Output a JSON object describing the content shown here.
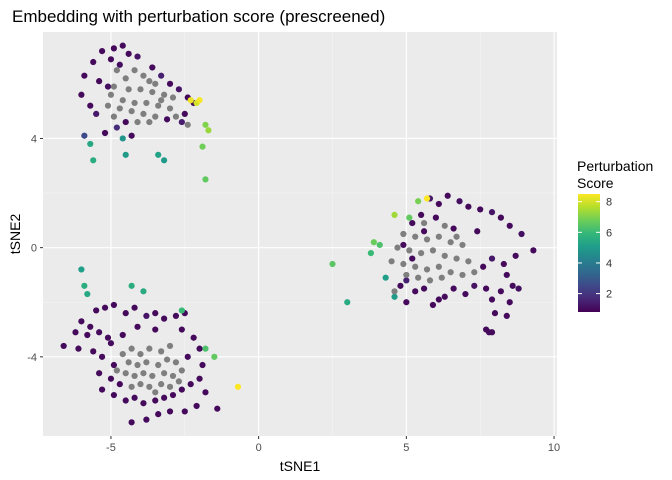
{
  "chart_data": {
    "type": "scatter",
    "title": "Embedding with perturbation score (prescreened)",
    "xlabel": "tSNE1",
    "ylabel": "tSNE2",
    "xlim": [
      -7.3,
      10.1
    ],
    "ylim": [
      -6.9,
      7.9
    ],
    "x_ticks": [
      -5,
      0,
      5,
      10
    ],
    "y_ticks": [
      -4,
      0,
      4
    ],
    "x_tick_labels": [
      "-5",
      "0",
      "5",
      "10"
    ],
    "y_tick_labels": [
      "-4",
      "0",
      "4"
    ],
    "grid": true,
    "legend": {
      "title_lines": [
        "Perturbation",
        "Score"
      ],
      "placement": "right",
      "min": 0.8,
      "max": 8.5,
      "ticks": [
        2,
        4,
        6,
        8
      ],
      "tick_labels": [
        "2",
        "4",
        "6",
        "8"
      ]
    },
    "na_color": "#7f7f7f",
    "colormap": [
      "#440154",
      "#482878",
      "#3e4989",
      "#31688e",
      "#26828e",
      "#1f9e89",
      "#35b779",
      "#6ece58",
      "#b5de2b",
      "#fde725"
    ],
    "points": [
      {
        "x": -5.3,
        "y": 7.2,
        "score": 1.0
      },
      {
        "x": -4.9,
        "y": 7.3,
        "score": 1.0
      },
      {
        "x": -4.6,
        "y": 7.4,
        "score": 1.0
      },
      {
        "x": -4.4,
        "y": 7.1,
        "score": 1.0
      },
      {
        "x": -4.1,
        "y": 7.0,
        "score": 1.2
      },
      {
        "x": -5.6,
        "y": 6.8,
        "score": 1.0
      },
      {
        "x": -5.0,
        "y": 6.9,
        "score": 1.0
      },
      {
        "x": -4.7,
        "y": 6.7,
        "score": 1.1
      },
      {
        "x": -3.6,
        "y": 6.6,
        "score": 1.0
      },
      {
        "x": -3.3,
        "y": 6.3,
        "score": 1.5
      },
      {
        "x": -5.9,
        "y": 6.3,
        "score": 1.0
      },
      {
        "x": -5.4,
        "y": 6.1,
        "score": 1.0
      },
      {
        "x": -5.1,
        "y": 5.9,
        "score": 1.1
      },
      {
        "x": -6.0,
        "y": 5.6,
        "score": 1.0
      },
      {
        "x": -5.7,
        "y": 5.2,
        "score": 1.0
      },
      {
        "x": -5.5,
        "y": 4.9,
        "score": 1.3
      },
      {
        "x": -3.0,
        "y": 6.0,
        "score": 1.0
      },
      {
        "x": -2.7,
        "y": 5.8,
        "score": 1.2
      },
      {
        "x": -2.4,
        "y": 5.5,
        "score": 1.0
      },
      {
        "x": -2.2,
        "y": 5.3,
        "score": 1.0
      },
      {
        "x": -2.5,
        "y": 4.9,
        "score": 1.0
      },
      {
        "x": -2.6,
        "y": 4.6,
        "score": 1.4
      },
      {
        "x": -3.1,
        "y": 4.7,
        "score": 1.0
      },
      {
        "x": -4.5,
        "y": 4.6,
        "score": 1.0
      },
      {
        "x": -4.8,
        "y": 4.4,
        "score": 1.8
      },
      {
        "x": -5.2,
        "y": 4.2,
        "score": 1.0
      },
      {
        "x": -4.3,
        "y": 4.1,
        "score": 1.0
      },
      {
        "x": -5.9,
        "y": 4.1,
        "score": 2.5
      },
      {
        "x": -4.6,
        "y": 4.0,
        "score": 4.8
      },
      {
        "x": -5.7,
        "y": 3.8,
        "score": 5.4
      },
      {
        "x": -5.6,
        "y": 3.2,
        "score": 5.6
      },
      {
        "x": -4.5,
        "y": 3.4,
        "score": 5.0
      },
      {
        "x": -3.4,
        "y": 3.4,
        "score": 5.2
      },
      {
        "x": -3.2,
        "y": 3.2,
        "score": 5.0
      },
      {
        "x": -2.3,
        "y": 5.4,
        "score": 8.3
      },
      {
        "x": -2.1,
        "y": 5.3,
        "score": 8.0
      },
      {
        "x": -2.0,
        "y": 5.4,
        "score": 8.4
      },
      {
        "x": -1.8,
        "y": 4.5,
        "score": 7.0
      },
      {
        "x": -1.7,
        "y": 4.3,
        "score": 7.3
      },
      {
        "x": -1.9,
        "y": 3.7,
        "score": 6.8
      },
      {
        "x": -1.8,
        "y": 2.5,
        "score": 6.6
      },
      {
        "x": -4.8,
        "y": 6.5,
        "score": null
      },
      {
        "x": -4.5,
        "y": 6.2,
        "score": null
      },
      {
        "x": -4.2,
        "y": 6.5,
        "score": null
      },
      {
        "x": -3.9,
        "y": 6.3,
        "score": null
      },
      {
        "x": -3.7,
        "y": 6.1,
        "score": null
      },
      {
        "x": -3.5,
        "y": 6.0,
        "score": null
      },
      {
        "x": -4.9,
        "y": 5.9,
        "score": null
      },
      {
        "x": -4.4,
        "y": 5.8,
        "score": null
      },
      {
        "x": -4.0,
        "y": 5.8,
        "score": null
      },
      {
        "x": -3.6,
        "y": 5.7,
        "score": null
      },
      {
        "x": -3.2,
        "y": 5.6,
        "score": null
      },
      {
        "x": -2.9,
        "y": 5.5,
        "score": null
      },
      {
        "x": -5.0,
        "y": 5.6,
        "score": null
      },
      {
        "x": -4.6,
        "y": 5.4,
        "score": null
      },
      {
        "x": -4.2,
        "y": 5.3,
        "score": null
      },
      {
        "x": -3.8,
        "y": 5.3,
        "score": null
      },
      {
        "x": -3.4,
        "y": 5.2,
        "score": null
      },
      {
        "x": -3.0,
        "y": 5.1,
        "score": null
      },
      {
        "x": -5.1,
        "y": 5.2,
        "score": null
      },
      {
        "x": -4.7,
        "y": 5.1,
        "score": null
      },
      {
        "x": -4.3,
        "y": 5.0,
        "score": null
      },
      {
        "x": -3.9,
        "y": 4.9,
        "score": null
      },
      {
        "x": -3.5,
        "y": 4.8,
        "score": null
      },
      {
        "x": -3.7,
        "y": 4.6,
        "score": null
      },
      {
        "x": -4.1,
        "y": 4.6,
        "score": null
      },
      {
        "x": -2.8,
        "y": 4.8,
        "score": null
      },
      {
        "x": -2.4,
        "y": 4.5,
        "score": null
      },
      {
        "x": -3.3,
        "y": 5.4,
        "score": null
      },
      {
        "x": -4.9,
        "y": 4.8,
        "score": null
      },
      {
        "x": 5.8,
        "y": 1.8,
        "score": 1.3
      },
      {
        "x": 6.1,
        "y": 1.6,
        "score": 1.0
      },
      {
        "x": 6.4,
        "y": 1.9,
        "score": 1.0
      },
      {
        "x": 6.8,
        "y": 1.7,
        "score": 1.1
      },
      {
        "x": 7.1,
        "y": 1.5,
        "score": 1.0
      },
      {
        "x": 7.5,
        "y": 1.4,
        "score": 1.0
      },
      {
        "x": 7.9,
        "y": 1.3,
        "score": 1.2
      },
      {
        "x": 8.2,
        "y": 1.1,
        "score": 1.0
      },
      {
        "x": 5.5,
        "y": 1.2,
        "score": 1.0
      },
      {
        "x": 5.2,
        "y": 0.9,
        "score": 1.0
      },
      {
        "x": 6.0,
        "y": 1.1,
        "score": 1.0
      },
      {
        "x": 8.5,
        "y": 0.8,
        "score": 1.0
      },
      {
        "x": 8.9,
        "y": 0.5,
        "score": 1.1
      },
      {
        "x": 9.3,
        "y": -0.1,
        "score": 1.0
      },
      {
        "x": 8.7,
        "y": -0.3,
        "score": 1.0
      },
      {
        "x": 8.3,
        "y": -0.6,
        "score": 1.0
      },
      {
        "x": 7.9,
        "y": -0.4,
        "score": 1.3
      },
      {
        "x": 7.6,
        "y": -0.7,
        "score": 1.0
      },
      {
        "x": 8.4,
        "y": -1.0,
        "score": 1.0
      },
      {
        "x": 8.6,
        "y": -1.4,
        "score": 1.0
      },
      {
        "x": 8.2,
        "y": -1.6,
        "score": 1.0
      },
      {
        "x": 7.7,
        "y": -1.5,
        "score": 1.0
      },
      {
        "x": 7.3,
        "y": -1.4,
        "score": 1.2
      },
      {
        "x": 7.0,
        "y": -1.7,
        "score": 1.0
      },
      {
        "x": 6.6,
        "y": -1.5,
        "score": 1.0
      },
      {
        "x": 6.3,
        "y": -1.8,
        "score": 1.0
      },
      {
        "x": 7.9,
        "y": -1.9,
        "score": 1.0
      },
      {
        "x": 8.5,
        "y": -2.0,
        "score": 1.0
      },
      {
        "x": 8.8,
        "y": -1.5,
        "score": 1.1
      },
      {
        "x": 8.0,
        "y": -2.4,
        "score": 1.0
      },
      {
        "x": 8.4,
        "y": -2.5,
        "score": 1.0
      },
      {
        "x": 7.7,
        "y": -3.0,
        "score": 1.0
      },
      {
        "x": 7.9,
        "y": -3.1,
        "score": 1.0
      },
      {
        "x": 7.8,
        "y": -3.1,
        "score": 1.0
      },
      {
        "x": 5.0,
        "y": -1.2,
        "score": 1.5
      },
      {
        "x": 4.8,
        "y": -1.4,
        "score": 1.0
      },
      {
        "x": 5.3,
        "y": -1.6,
        "score": 1.0
      },
      {
        "x": 5.6,
        "y": -1.5,
        "score": 1.0
      },
      {
        "x": 5.0,
        "y": -2.0,
        "score": 1.0
      },
      {
        "x": 5.9,
        "y": -2.1,
        "score": 1.0
      },
      {
        "x": 6.1,
        "y": -1.9,
        "score": 1.0
      },
      {
        "x": 5.2,
        "y": -0.4,
        "score": 1.0
      },
      {
        "x": 4.9,
        "y": 0.1,
        "score": 1.0
      },
      {
        "x": 5.6,
        "y": 0.6,
        "score": 1.0
      },
      {
        "x": 6.6,
        "y": 0.7,
        "score": 1.0
      },
      {
        "x": 7.4,
        "y": 0.6,
        "score": 1.0
      },
      {
        "x": 5.4,
        "y": 1.7,
        "score": 6.9
      },
      {
        "x": 5.7,
        "y": 1.8,
        "score": 8.5
      },
      {
        "x": 4.6,
        "y": 1.2,
        "score": 7.4
      },
      {
        "x": 5.1,
        "y": 1.1,
        "score": 6.6
      },
      {
        "x": 3.9,
        "y": 0.2,
        "score": 6.7
      },
      {
        "x": 4.1,
        "y": 0.1,
        "score": 6.3
      },
      {
        "x": 3.8,
        "y": -0.2,
        "score": 6.0
      },
      {
        "x": 4.3,
        "y": -1.1,
        "score": 5.1
      },
      {
        "x": 4.6,
        "y": -1.8,
        "score": 5.0
      },
      {
        "x": 2.5,
        "y": -0.6,
        "score": 6.5
      },
      {
        "x": 3.0,
        "y": -2.0,
        "score": 5.5
      },
      {
        "x": 4.9,
        "y": 0.5,
        "score": null
      },
      {
        "x": 5.3,
        "y": 0.4,
        "score": null
      },
      {
        "x": 5.7,
        "y": 0.3,
        "score": null
      },
      {
        "x": 6.1,
        "y": 0.4,
        "score": null
      },
      {
        "x": 6.5,
        "y": 0.2,
        "score": null
      },
      {
        "x": 6.9,
        "y": 0.1,
        "score": null
      },
      {
        "x": 4.7,
        "y": 0.0,
        "score": null
      },
      {
        "x": 5.1,
        "y": -0.1,
        "score": null
      },
      {
        "x": 5.5,
        "y": -0.2,
        "score": null
      },
      {
        "x": 5.9,
        "y": -0.1,
        "score": null
      },
      {
        "x": 6.3,
        "y": -0.3,
        "score": null
      },
      {
        "x": 6.7,
        "y": -0.4,
        "score": null
      },
      {
        "x": 7.1,
        "y": -0.5,
        "score": null
      },
      {
        "x": 4.5,
        "y": -0.5,
        "score": null
      },
      {
        "x": 4.9,
        "y": -0.6,
        "score": null
      },
      {
        "x": 5.3,
        "y": -0.7,
        "score": null
      },
      {
        "x": 5.7,
        "y": -0.8,
        "score": null
      },
      {
        "x": 6.1,
        "y": -0.7,
        "score": null
      },
      {
        "x": 6.5,
        "y": -0.9,
        "score": null
      },
      {
        "x": 5.0,
        "y": -1.0,
        "score": null
      },
      {
        "x": 5.4,
        "y": -1.1,
        "score": null
      },
      {
        "x": 5.8,
        "y": -1.2,
        "score": null
      },
      {
        "x": 6.2,
        "y": -1.1,
        "score": null
      },
      {
        "x": 6.9,
        "y": -1.0,
        "score": null
      },
      {
        "x": 7.3,
        "y": -0.9,
        "score": null
      },
      {
        "x": 5.6,
        "y": 0.9,
        "score": null
      },
      {
        "x": 6.3,
        "y": 0.8,
        "score": null
      },
      {
        "x": 4.6,
        "y": -1.6,
        "score": null
      },
      {
        "x": 6.7,
        "y": 0.4,
        "score": null
      },
      {
        "x": -5.5,
        "y": -2.3,
        "score": 1.0
      },
      {
        "x": -5.2,
        "y": -2.2,
        "score": 1.0
      },
      {
        "x": -4.9,
        "y": -2.1,
        "score": 1.0
      },
      {
        "x": -4.5,
        "y": -2.4,
        "score": 1.0
      },
      {
        "x": -4.2,
        "y": -2.2,
        "score": 1.0
      },
      {
        "x": -3.8,
        "y": -2.5,
        "score": 1.2
      },
      {
        "x": -3.5,
        "y": -2.4,
        "score": 1.0
      },
      {
        "x": -3.2,
        "y": -2.6,
        "score": 1.0
      },
      {
        "x": -2.8,
        "y": -2.5,
        "score": 1.0
      },
      {
        "x": -2.5,
        "y": -2.4,
        "score": 1.0
      },
      {
        "x": -6.0,
        "y": -2.7,
        "score": 1.0
      },
      {
        "x": -5.7,
        "y": -2.9,
        "score": 1.0
      },
      {
        "x": -6.2,
        "y": -3.1,
        "score": 1.0
      },
      {
        "x": -5.8,
        "y": -3.2,
        "score": 1.0
      },
      {
        "x": -5.4,
        "y": -3.1,
        "score": 1.0
      },
      {
        "x": -5.1,
        "y": -3.3,
        "score": 1.0
      },
      {
        "x": -4.6,
        "y": -3.2,
        "score": 1.0
      },
      {
        "x": -6.6,
        "y": -3.6,
        "score": 1.0
      },
      {
        "x": -6.1,
        "y": -3.7,
        "score": 1.0
      },
      {
        "x": -5.6,
        "y": -3.8,
        "score": 1.0
      },
      {
        "x": -5.0,
        "y": -3.5,
        "score": 1.0
      },
      {
        "x": -5.3,
        "y": -4.0,
        "score": 1.0
      },
      {
        "x": -4.9,
        "y": -4.3,
        "score": 1.0
      },
      {
        "x": -5.4,
        "y": -4.6,
        "score": 1.0
      },
      {
        "x": -5.0,
        "y": -4.8,
        "score": 1.0
      },
      {
        "x": -4.7,
        "y": -5.0,
        "score": 1.0
      },
      {
        "x": -5.3,
        "y": -5.2,
        "score": 1.0
      },
      {
        "x": -4.9,
        "y": -5.4,
        "score": 1.0
      },
      {
        "x": -4.5,
        "y": -5.6,
        "score": 1.0
      },
      {
        "x": -4.2,
        "y": -5.5,
        "score": 1.0
      },
      {
        "x": -3.9,
        "y": -5.7,
        "score": 1.0
      },
      {
        "x": -3.5,
        "y": -5.6,
        "score": 1.0
      },
      {
        "x": -3.2,
        "y": -5.5,
        "score": 1.0
      },
      {
        "x": -2.9,
        "y": -5.4,
        "score": 1.0
      },
      {
        "x": -2.6,
        "y": -5.2,
        "score": 1.0
      },
      {
        "x": -2.3,
        "y": -5.0,
        "score": 1.0
      },
      {
        "x": -2.0,
        "y": -4.8,
        "score": 1.0
      },
      {
        "x": -1.8,
        "y": -5.3,
        "score": 1.0
      },
      {
        "x": -2.1,
        "y": -5.8,
        "score": 1.0
      },
      {
        "x": -2.5,
        "y": -6.0,
        "score": 1.0
      },
      {
        "x": -3.0,
        "y": -6.0,
        "score": 1.0
      },
      {
        "x": -3.4,
        "y": -6.1,
        "score": 1.0
      },
      {
        "x": -3.8,
        "y": -6.3,
        "score": 1.0
      },
      {
        "x": -4.3,
        "y": -6.4,
        "score": 1.0
      },
      {
        "x": -1.4,
        "y": -5.9,
        "score": 1.0
      },
      {
        "x": -2.6,
        "y": -3.0,
        "score": 1.0
      },
      {
        "x": -2.2,
        "y": -3.3,
        "score": 1.0
      },
      {
        "x": -2.0,
        "y": -3.7,
        "score": 1.0
      },
      {
        "x": -2.4,
        "y": -4.0,
        "score": 1.0
      },
      {
        "x": -1.9,
        "y": -4.3,
        "score": 1.0
      },
      {
        "x": -3.5,
        "y": -3.0,
        "score": 1.0
      },
      {
        "x": -4.1,
        "y": -2.9,
        "score": 1.0
      },
      {
        "x": -5.8,
        "y": -1.7,
        "score": 5.4
      },
      {
        "x": -5.9,
        "y": -1.4,
        "score": 5.6
      },
      {
        "x": -6.0,
        "y": -0.8,
        "score": 5.1
      },
      {
        "x": -4.3,
        "y": -1.4,
        "score": 5.6
      },
      {
        "x": -3.9,
        "y": -1.6,
        "score": 5.5
      },
      {
        "x": -2.6,
        "y": -2.3,
        "score": 6.0
      },
      {
        "x": -1.8,
        "y": -3.7,
        "score": 6.3
      },
      {
        "x": -1.5,
        "y": -4.0,
        "score": 6.6
      },
      {
        "x": -0.7,
        "y": -5.1,
        "score": 8.5
      },
      {
        "x": -4.6,
        "y": -3.9,
        "score": null
      },
      {
        "x": -4.3,
        "y": -3.7,
        "score": null
      },
      {
        "x": -4.0,
        "y": -3.9,
        "score": null
      },
      {
        "x": -3.7,
        "y": -3.7,
        "score": null
      },
      {
        "x": -3.3,
        "y": -3.8,
        "score": null
      },
      {
        "x": -3.0,
        "y": -3.6,
        "score": null
      },
      {
        "x": -4.4,
        "y": -4.2,
        "score": null
      },
      {
        "x": -4.1,
        "y": -4.3,
        "score": null
      },
      {
        "x": -3.8,
        "y": -4.2,
        "score": null
      },
      {
        "x": -3.4,
        "y": -4.3,
        "score": null
      },
      {
        "x": -3.1,
        "y": -4.1,
        "score": null
      },
      {
        "x": -2.8,
        "y": -4.2,
        "score": null
      },
      {
        "x": -4.5,
        "y": -4.6,
        "score": null
      },
      {
        "x": -4.2,
        "y": -4.7,
        "score": null
      },
      {
        "x": -3.9,
        "y": -4.6,
        "score": null
      },
      {
        "x": -3.6,
        "y": -4.7,
        "score": null
      },
      {
        "x": -3.2,
        "y": -4.6,
        "score": null
      },
      {
        "x": -2.9,
        "y": -4.7,
        "score": null
      },
      {
        "x": -2.6,
        "y": -4.5,
        "score": null
      },
      {
        "x": -4.3,
        "y": -5.1,
        "score": null
      },
      {
        "x": -4.0,
        "y": -5.0,
        "score": null
      },
      {
        "x": -3.7,
        "y": -5.1,
        "score": null
      },
      {
        "x": -3.3,
        "y": -5.0,
        "score": null
      },
      {
        "x": -3.0,
        "y": -5.1,
        "score": null
      },
      {
        "x": -2.7,
        "y": -4.9,
        "score": null
      },
      {
        "x": -4.8,
        "y": -4.5,
        "score": null
      },
      {
        "x": -3.5,
        "y": -5.3,
        "score": null
      }
    ]
  }
}
